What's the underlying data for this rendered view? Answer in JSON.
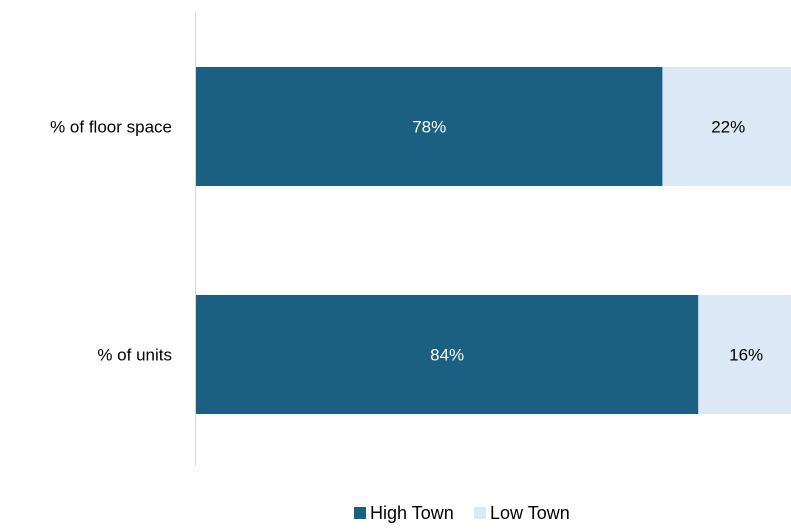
{
  "chart_data": {
    "type": "bar",
    "orientation": "horizontal",
    "stacked": true,
    "percent_scale": true,
    "categories": [
      "% of floor space",
      "% of units"
    ],
    "series": [
      {
        "name": "High Town",
        "values": [
          78,
          84
        ],
        "labels": [
          "78%",
          "84%"
        ],
        "color": "#1B6083",
        "label_color": "#ffffff"
      },
      {
        "name": "Low Town",
        "values": [
          22,
          16
        ],
        "labels": [
          "22%",
          "16%"
        ],
        "color": "#DCE8F5",
        "label_color": "#000000"
      }
    ],
    "xlim": [
      0,
      100
    ],
    "grid": false,
    "legend_position": "bottom"
  }
}
